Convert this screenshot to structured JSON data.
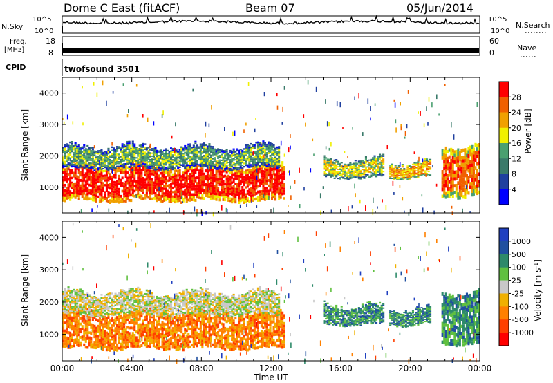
{
  "header": {
    "station": "Dome C East (fitACF)",
    "beam": "Beam 07",
    "date": "05/Jun/2014"
  },
  "noise_panel": {
    "left_label": "N.Sky",
    "right_label": "N.Search",
    "left_ticks": [
      "10^5",
      "10^0"
    ],
    "right_ticks": [
      "10^5",
      "10^0"
    ]
  },
  "freq_panel": {
    "left_label": "Freq.",
    "left_units": "[MHz]",
    "left_ticks": [
      "18",
      "8"
    ],
    "right_label": "Nave",
    "right_ticks": [
      "60",
      "0"
    ]
  },
  "cpid": {
    "label": "CPID",
    "value": "twofsound 3501"
  },
  "colors": {
    "power": [
      "#0000ff",
      "#20409f",
      "#3a7a6a",
      "#4aa070",
      "#f0f000",
      "#f0a000",
      "#f06000",
      "#ff0000"
    ],
    "velocity": [
      "#ff0000",
      "#ff4000",
      "#ff8000",
      "#f0b000",
      "#c8c8c8",
      "#60c040",
      "#2e8a6a",
      "#2050a0",
      "#2040c0"
    ]
  },
  "chart_data": [
    {
      "type": "heatmap",
      "title": "Power",
      "ylabel": "Slant Range [km]",
      "ylim": [
        180,
        4500
      ],
      "y_ticks": [
        1000,
        2000,
        3000,
        4000
      ],
      "xlabel": "",
      "x_ticks": [
        "00:00",
        "04:00",
        "08:00",
        "12:00",
        "16:00",
        "20:00",
        "00:00"
      ],
      "colorbar": {
        "label": "Power [dB]",
        "ticks": [
          "4",
          "8",
          "12",
          "16",
          "20",
          "24",
          "28"
        ],
        "range": [
          0,
          30
        ]
      },
      "series": [
        {
          "time_start_h": 0.0,
          "time_end_h": 12.8,
          "range_low_km": 550,
          "range_high_km": 1700,
          "value_db": 28
        },
        {
          "time_start_h": 0.0,
          "time_end_h": 12.5,
          "range_low_km": 1600,
          "range_high_km": 2300,
          "value_db": 12
        },
        {
          "time_start_h": 15.0,
          "time_end_h": 18.5,
          "range_low_km": 1300,
          "range_high_km": 1900,
          "value_db": 16
        },
        {
          "time_start_h": 18.8,
          "time_end_h": 21.2,
          "range_low_km": 1300,
          "range_high_km": 1800,
          "value_db": 20
        },
        {
          "time_start_h": 21.8,
          "time_end_h": 24.0,
          "range_low_km": 700,
          "range_high_km": 2300,
          "value_db": 24
        }
      ]
    },
    {
      "type": "heatmap",
      "title": "Velocity",
      "ylabel": "Slant Range [km]",
      "ylim": [
        180,
        4500
      ],
      "y_ticks": [
        1000,
        2000,
        3000,
        4000
      ],
      "xlabel": "Time UT",
      "x_ticks": [
        "00:00",
        "04:00",
        "08:00",
        "12:00",
        "16:00",
        "20:00",
        "00:00"
      ],
      "colorbar": {
        "label": "Velocity [m s^-1]",
        "ticks": [
          "1000",
          "500",
          "100",
          "25",
          "-25",
          "-100",
          "-500",
          "-1000"
        ]
      },
      "series": [
        {
          "time_start_h": 0.0,
          "time_end_h": 12.8,
          "range_low_km": 550,
          "range_high_km": 1700,
          "value_ms": -300
        },
        {
          "time_start_h": 0.0,
          "time_end_h": 12.5,
          "range_low_km": 1600,
          "range_high_km": 2300,
          "value_ms": 0
        },
        {
          "time_start_h": 15.0,
          "time_end_h": 18.5,
          "range_low_km": 1300,
          "range_high_km": 1900,
          "value_ms": 150
        },
        {
          "time_start_h": 18.8,
          "time_end_h": 21.2,
          "range_low_km": 1300,
          "range_high_km": 1800,
          "value_ms": 300
        },
        {
          "time_start_h": 21.8,
          "time_end_h": 24.0,
          "range_low_km": 700,
          "range_high_km": 2300,
          "value_ms": 200
        }
      ]
    }
  ]
}
